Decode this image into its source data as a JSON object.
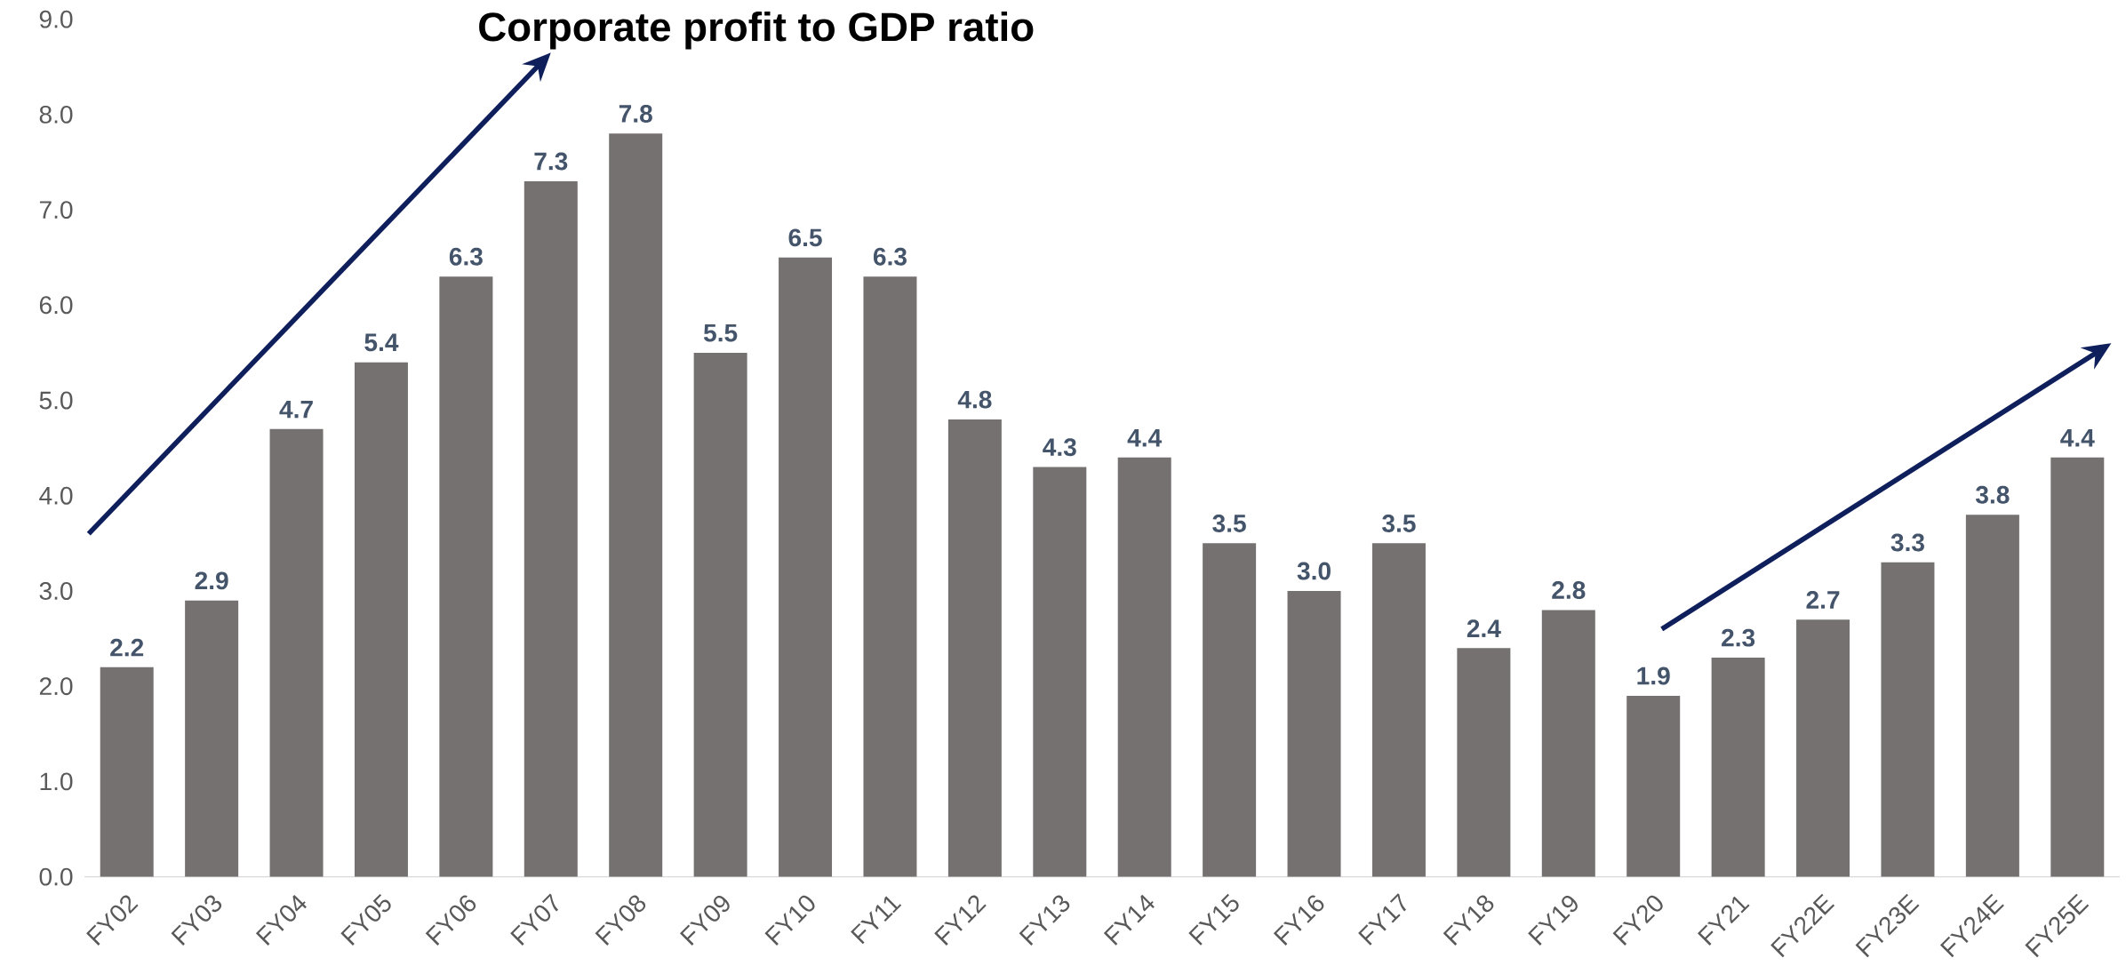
{
  "chart_data": {
    "type": "bar",
    "title": "Corporate profit to GDP ratio",
    "categories": [
      "FY02",
      "FY03",
      "FY04",
      "FY05",
      "FY06",
      "FY07",
      "FY08",
      "FY09",
      "FY10",
      "FY11",
      "FY12",
      "FY13",
      "FY14",
      "FY15",
      "FY16",
      "FY17",
      "FY18",
      "FY19",
      "FY20",
      "FY21",
      "FY22E",
      "FY23E",
      "FY24E",
      "FY25E"
    ],
    "values": [
      2.2,
      2.9,
      4.7,
      5.4,
      6.3,
      7.3,
      7.8,
      5.5,
      6.5,
      6.3,
      4.8,
      4.3,
      4.4,
      3.5,
      3.0,
      3.5,
      2.4,
      2.8,
      1.9,
      2.3,
      2.7,
      3.3,
      3.8,
      4.4
    ],
    "color": "#767171",
    "value_labels": [
      "2.2",
      "2.9",
      "4.7",
      "5.4",
      "6.3",
      "7.3",
      "7.8",
      "5.5",
      "6.5",
      "6.3",
      "4.8",
      "4.3",
      "4.4",
      "3.5",
      "3.0",
      "3.5",
      "2.4",
      "2.8",
      "1.9",
      "2.3",
      "2.7",
      "3.3",
      "3.8",
      "4.4"
    ],
    "ylim": [
      0,
      9
    ],
    "yticks": [
      {
        "value": 0,
        "label": "0.0"
      },
      {
        "value": 1,
        "label": "1.0"
      },
      {
        "value": 2,
        "label": "2.0"
      },
      {
        "value": 3,
        "label": "3.0"
      },
      {
        "value": 4,
        "label": "4.0"
      },
      {
        "value": 5,
        "label": "5.0"
      },
      {
        "value": 6,
        "label": "6.0"
      },
      {
        "value": 7,
        "label": "7.0"
      },
      {
        "value": 8,
        "label": "8.0"
      },
      {
        "value": 9,
        "label": "9.0"
      }
    ]
  }
}
